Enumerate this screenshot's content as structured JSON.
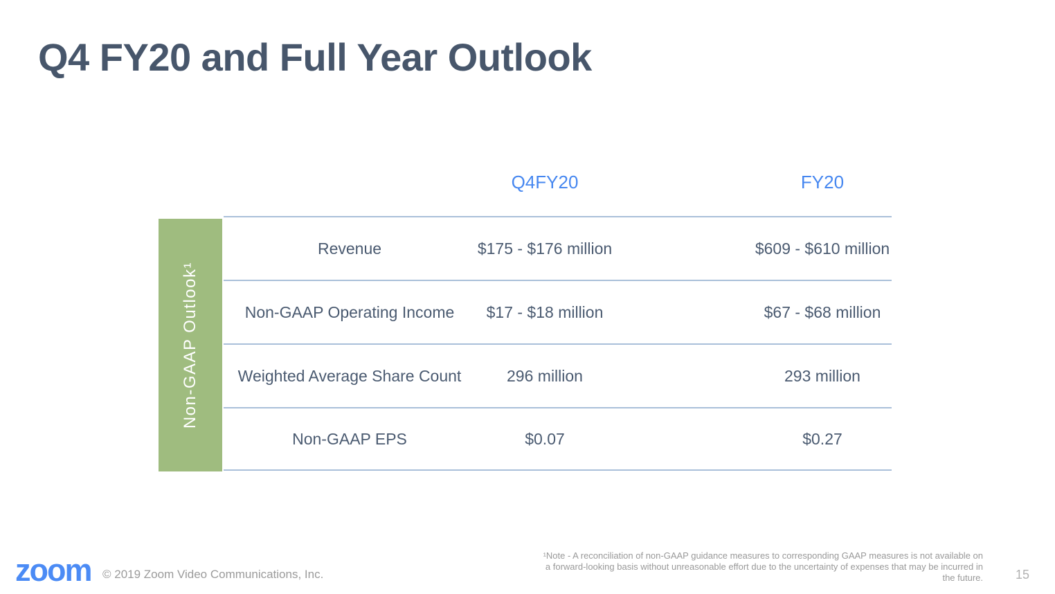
{
  "slide": {
    "title": "Q4 FY20 and Full Year Outlook",
    "table": {
      "side_label": "Non-GAAP Outlook¹",
      "col_headers": {
        "q4": "Q4FY20",
        "fy": "FY20"
      },
      "rows": [
        {
          "label": "Revenue",
          "q4": "$175 - $176 million",
          "fy": "$609 - $610 million"
        },
        {
          "label": "Non-GAAP Operating Income",
          "q4": "$17 - $18 million",
          "fy": "$67 - $68 million"
        },
        {
          "label": "Weighted Average Share Count",
          "q4": "296 million",
          "fy": "293 million"
        },
        {
          "label": "Non-GAAP EPS",
          "q4": "$0.07",
          "fy": "$0.27"
        }
      ]
    },
    "footer": {
      "logo_text": "zoom",
      "copyright": "© 2019 Zoom Video Communications, Inc.",
      "footnote": "¹Note - A reconciliation of non-GAAP guidance measures to corresponding GAAP measures is not available on a forward-looking basis without unreasonable effort due to the uncertainty of expenses that may be incurred in the future.",
      "page_number": "15"
    },
    "colors": {
      "title_text": "#47566b",
      "header_blue": "#4687f0",
      "green_bar": "#9fbc7f",
      "divider_line": "#a9bfd9",
      "logo_blue": "#4b8bf5",
      "body_text": "#4a5a70",
      "muted_gray": "#9b9b9b"
    }
  }
}
